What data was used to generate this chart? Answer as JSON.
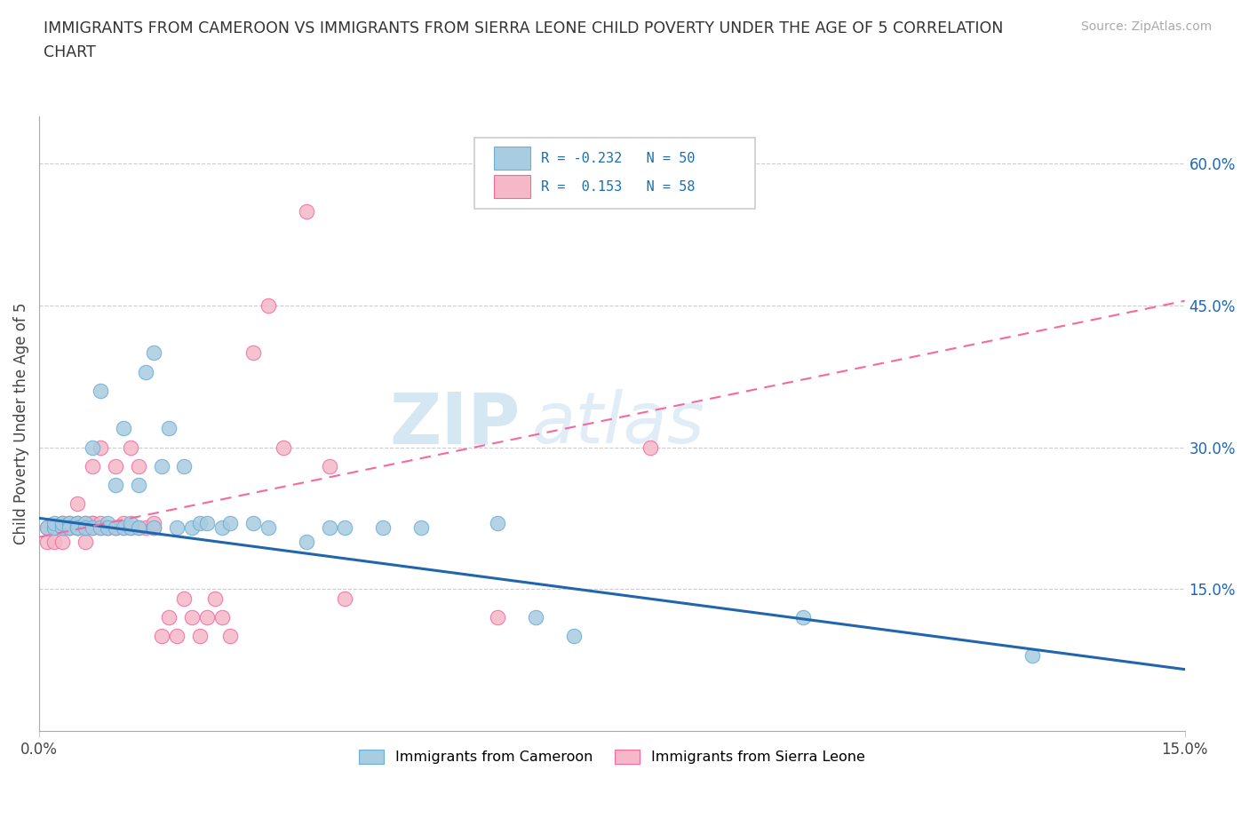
{
  "title": "IMMIGRANTS FROM CAMEROON VS IMMIGRANTS FROM SIERRA LEONE CHILD POVERTY UNDER THE AGE OF 5 CORRELATION\nCHART",
  "source": "Source: ZipAtlas.com",
  "ylabel": "Child Poverty Under the Age of 5",
  "xlim": [
    0.0,
    0.15
  ],
  "ylim": [
    0.0,
    0.65
  ],
  "watermark_part1": "ZIP",
  "watermark_part2": "atlas",
  "cameroon_color": "#a8cce0",
  "cameroon_edge": "#6baed6",
  "sierra_leone_color": "#f4b8c8",
  "sierra_leone_edge": "#f768a1",
  "cameroon_line_color": "#2166ac",
  "sierra_leone_line_color": "#f768a1",
  "cameroon_R": -0.232,
  "cameroon_N": 50,
  "sierra_leone_R": 0.153,
  "sierra_leone_N": 58,
  "right_yticks": [
    0.15,
    0.3,
    0.45,
    0.6
  ],
  "right_ylabels": [
    "15.0%",
    "30.0%",
    "45.0%",
    "60.0%"
  ],
  "cameroon_scatter_x": [
    0.001,
    0.002,
    0.002,
    0.003,
    0.003,
    0.004,
    0.004,
    0.005,
    0.005,
    0.005,
    0.006,
    0.006,
    0.007,
    0.007,
    0.008,
    0.008,
    0.009,
    0.009,
    0.01,
    0.01,
    0.011,
    0.011,
    0.012,
    0.012,
    0.013,
    0.013,
    0.014,
    0.015,
    0.015,
    0.016,
    0.017,
    0.018,
    0.019,
    0.02,
    0.021,
    0.022,
    0.024,
    0.025,
    0.028,
    0.03,
    0.035,
    0.038,
    0.04,
    0.045,
    0.05,
    0.06,
    0.065,
    0.07,
    0.1,
    0.13
  ],
  "cameroon_scatter_y": [
    0.215,
    0.215,
    0.22,
    0.215,
    0.22,
    0.22,
    0.215,
    0.215,
    0.22,
    0.215,
    0.22,
    0.215,
    0.215,
    0.3,
    0.215,
    0.36,
    0.22,
    0.215,
    0.215,
    0.26,
    0.215,
    0.32,
    0.215,
    0.22,
    0.215,
    0.26,
    0.38,
    0.4,
    0.215,
    0.28,
    0.32,
    0.215,
    0.28,
    0.215,
    0.22,
    0.22,
    0.215,
    0.22,
    0.22,
    0.215,
    0.2,
    0.215,
    0.215,
    0.215,
    0.215,
    0.22,
    0.12,
    0.1,
    0.12,
    0.08
  ],
  "sierra_leone_scatter_x": [
    0.001,
    0.001,
    0.002,
    0.002,
    0.002,
    0.003,
    0.003,
    0.003,
    0.004,
    0.004,
    0.004,
    0.005,
    0.005,
    0.005,
    0.005,
    0.006,
    0.006,
    0.006,
    0.006,
    0.007,
    0.007,
    0.007,
    0.007,
    0.008,
    0.008,
    0.008,
    0.009,
    0.009,
    0.01,
    0.01,
    0.01,
    0.011,
    0.011,
    0.012,
    0.012,
    0.013,
    0.013,
    0.014,
    0.015,
    0.015,
    0.016,
    0.017,
    0.018,
    0.019,
    0.02,
    0.021,
    0.022,
    0.023,
    0.024,
    0.025,
    0.028,
    0.03,
    0.032,
    0.035,
    0.038,
    0.04,
    0.06,
    0.08
  ],
  "sierra_leone_scatter_y": [
    0.215,
    0.2,
    0.215,
    0.215,
    0.2,
    0.215,
    0.22,
    0.2,
    0.215,
    0.22,
    0.215,
    0.215,
    0.22,
    0.24,
    0.215,
    0.22,
    0.2,
    0.215,
    0.215,
    0.22,
    0.215,
    0.22,
    0.28,
    0.215,
    0.22,
    0.3,
    0.215,
    0.215,
    0.215,
    0.28,
    0.215,
    0.215,
    0.22,
    0.3,
    0.215,
    0.28,
    0.215,
    0.215,
    0.215,
    0.22,
    0.1,
    0.12,
    0.1,
    0.14,
    0.12,
    0.1,
    0.12,
    0.14,
    0.12,
    0.1,
    0.4,
    0.45,
    0.3,
    0.55,
    0.28,
    0.14,
    0.12,
    0.3
  ],
  "cam_line_x0": 0.0,
  "cam_line_y0": 0.225,
  "cam_line_x1": 0.15,
  "cam_line_y1": 0.065,
  "sl_line_x0": 0.0,
  "sl_line_y0": 0.205,
  "sl_line_x1": 0.15,
  "sl_line_y1": 0.455
}
